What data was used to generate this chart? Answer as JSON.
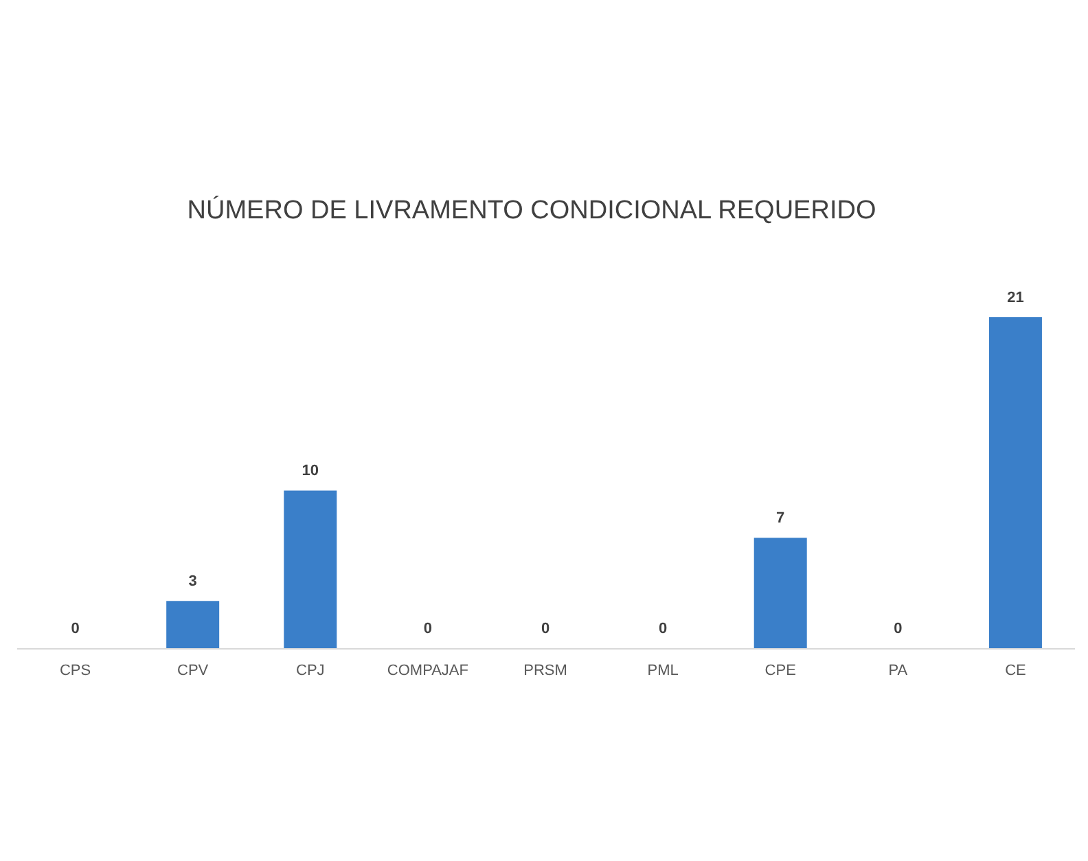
{
  "chart_data": {
    "type": "bar",
    "title": "NÚMERO DE LIVRAMENTO CONDICIONAL REQUERIDO",
    "categories": [
      "CPS",
      "CPV",
      "CPJ",
      "COMPAJAF",
      "PRSM",
      "PML",
      "CPE",
      "PA",
      "CE"
    ],
    "values": [
      0,
      3,
      10,
      0,
      0,
      0,
      7,
      0,
      21
    ],
    "color": "#3a7fc9",
    "data_labels": true
  }
}
